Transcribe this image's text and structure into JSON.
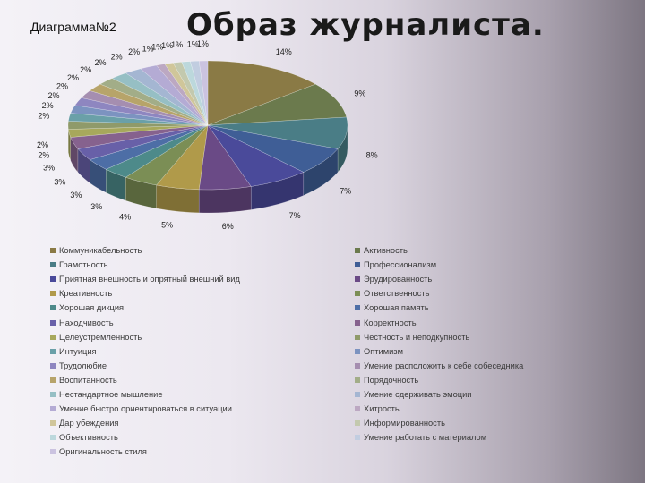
{
  "slide": {
    "label": "Диаграмма№2",
    "title": "Образ журналиста."
  },
  "chart_data": {
    "type": "pie",
    "categories": [
      "Коммуникабельность",
      "Активность",
      "Грамотность",
      "Профессионализм",
      "Приятная внешность и опрятный внешний вид",
      "Эрудированность",
      "Креативность",
      "Ответственность",
      "Хорошая дикция",
      "Хорошая память",
      "Находчивость",
      "Корректность",
      "Целеустремленность",
      "Честность и неподкупность",
      "Интуиция",
      "Оптимизм",
      "Трудолюбие",
      "Умение расположить к себе собеседника",
      "Воспитанность",
      "Порядочность",
      "Нестандартное мышление",
      "Умение сдерживать эмоции",
      "Умение быстро ориентироваться в ситуации",
      "Хитрость",
      "Дар убеждения",
      "Информированность",
      "Объективность",
      "Умение работать с материалом",
      "Оригинальность стиля"
    ],
    "values": [
      14,
      9,
      8,
      7,
      7,
      6,
      5,
      4,
      3,
      3,
      3,
      3,
      2,
      2,
      2,
      2,
      2,
      2,
      2,
      2,
      2,
      2,
      2,
      1,
      1,
      1,
      1,
      1,
      1
    ],
    "colors": [
      "#8a7a45",
      "#6b7a4d",
      "#4a7d86",
      "#3f5e96",
      "#4a4a9a",
      "#6a4a86",
      "#b09a4a",
      "#7b8e55",
      "#4d8a8a",
      "#4d6ea6",
      "#6860a8",
      "#86628e",
      "#a7a85c",
      "#8f9a6a",
      "#6aa0a8",
      "#7c93c0",
      "#8e86c0",
      "#a58eb0",
      "#b7a46a",
      "#a2ad88",
      "#96bfc4",
      "#a4b6d2",
      "#b4abd4",
      "#bca8c2",
      "#d0c69a",
      "#c3c9ae",
      "#bcd8dc",
      "#c1cde0",
      "#cbc3e0"
    ],
    "labels": [
      "14%",
      "9%",
      "8%",
      "7%",
      "7%",
      "6%",
      "5%",
      "4%",
      "3%",
      "3%",
      "3%",
      "3%",
      "2%",
      "2%",
      "2%",
      "2%",
      "2%",
      "2%",
      "2%",
      "2%",
      "2%",
      "2%",
      "2%",
      "1%",
      "1%",
      "1%",
      "1%",
      "1%",
      "1%"
    ],
    "legend_placement": "bottom"
  }
}
